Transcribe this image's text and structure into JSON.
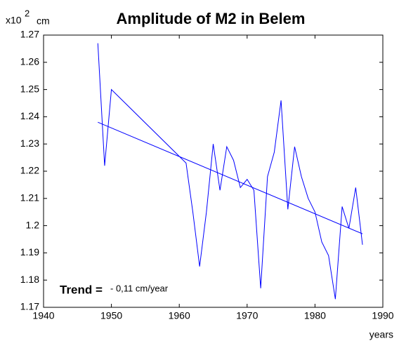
{
  "chart_data": {
    "type": "line",
    "title": "Amplitude of M2 in Belem",
    "y_unit": {
      "prefix": "x10",
      "exponent": "2",
      "unit": "cm"
    },
    "xlabel": "years",
    "x": [
      1948,
      1949,
      1950,
      1961,
      1962,
      1963,
      1964,
      1965,
      1966,
      1967,
      1968,
      1969,
      1970,
      1971,
      1972,
      1973,
      1974,
      1975,
      1976,
      1977,
      1978,
      1979,
      1980,
      1981,
      1982,
      1983,
      1984,
      1985,
      1986,
      1987
    ],
    "values": [
      1.267,
      1.222,
      1.25,
      1.223,
      1.205,
      1.185,
      1.205,
      1.23,
      1.213,
      1.229,
      1.224,
      1.214,
      1.217,
      1.213,
      1.177,
      1.218,
      1.227,
      1.246,
      1.206,
      1.229,
      1.218,
      1.21,
      1.205,
      1.194,
      1.189,
      1.173,
      1.207,
      1.199,
      1.214,
      1.193
    ],
    "color": "#0000ff",
    "trend": {
      "x": [
        1948,
        1987
      ],
      "values": [
        1.238,
        1.197
      ],
      "color": "#0000ff"
    },
    "annotation": {
      "label": "Trend =",
      "value": "- 0,11 cm/year"
    },
    "xlim": [
      1940,
      1990
    ],
    "ylim": [
      1.17,
      1.27
    ],
    "xticks": [
      1940,
      1950,
      1960,
      1970,
      1980,
      1990
    ],
    "yticks": [
      1.17,
      1.18,
      1.19,
      1.2,
      1.21,
      1.22,
      1.23,
      1.24,
      1.25,
      1.26,
      1.27
    ],
    "grid": false
  }
}
